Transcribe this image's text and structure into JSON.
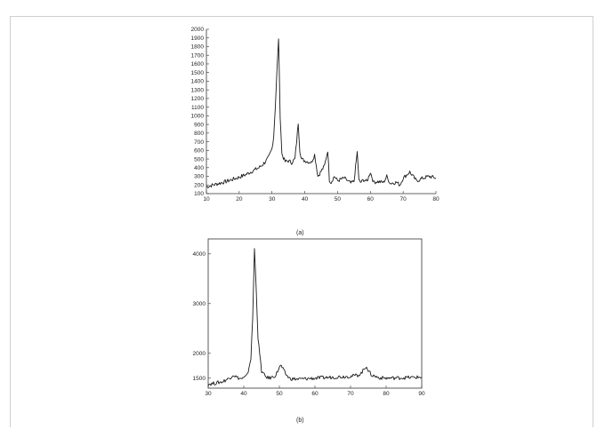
{
  "chart_data": [
    {
      "type": "line",
      "panel": "(a)",
      "title": "",
      "xlabel": "",
      "ylabel": "",
      "xlim": [
        10,
        80
      ],
      "ylim": [
        100,
        2000
      ],
      "x_ticks": [
        10,
        20,
        30,
        40,
        50,
        60,
        70,
        80
      ],
      "y_ticks": [
        100,
        200,
        300,
        400,
        500,
        600,
        700,
        800,
        900,
        1000,
        1100,
        1200,
        1300,
        1400,
        1500,
        1600,
        1700,
        1800,
        1900,
        2000
      ],
      "grid": false,
      "series": [
        {
          "x": [
            10,
            12,
            14,
            16,
            18,
            20,
            22,
            24,
            26,
            27,
            28,
            29,
            30,
            30.5,
            31,
            31.5,
            32,
            32.5,
            33,
            34,
            35,
            36,
            37,
            37.5,
            38,
            38.5,
            39,
            40,
            42,
            43,
            44,
            45,
            46,
            47,
            47.5,
            48,
            49,
            50,
            52,
            54,
            55,
            56,
            56.5,
            57,
            58,
            59,
            60,
            61,
            62,
            64,
            65,
            66,
            68,
            69,
            70,
            72,
            74,
            75,
            76,
            78,
            80
          ],
          "values": [
            180,
            200,
            220,
            240,
            265,
            290,
            320,
            360,
            400,
            430,
            470,
            520,
            620,
            760,
            1100,
            1500,
            1900,
            1000,
            560,
            470,
            480,
            460,
            500,
            700,
            920,
            600,
            500,
            480,
            460,
            550,
            300,
            360,
            420,
            600,
            260,
            230,
            300,
            250,
            280,
            220,
            240,
            580,
            250,
            230,
            260,
            240,
            350,
            230,
            240,
            230,
            300,
            220,
            230,
            200,
            280,
            350,
            250,
            260,
            280,
            300,
            280
          ]
        }
      ]
    },
    {
      "type": "line",
      "panel": "(b)",
      "title": "",
      "xlabel": "",
      "ylabel": "",
      "xlim": [
        30,
        90
      ],
      "ylim": [
        1300,
        4300
      ],
      "x_ticks": [
        30,
        40,
        50,
        60,
        70,
        80,
        90
      ],
      "y_ticks": [
        1500,
        2000,
        3000,
        4000
      ],
      "grid": false,
      "series": [
        {
          "x": [
            30,
            32,
            34,
            36,
            37,
            38,
            39,
            40,
            41,
            42,
            42.5,
            43,
            43.5,
            44,
            45,
            46,
            47,
            48,
            49,
            50,
            50.5,
            51,
            52,
            53,
            55,
            60,
            65,
            70,
            72,
            73,
            74,
            74.5,
            75,
            76,
            78,
            80,
            85,
            90
          ],
          "values": [
            1380,
            1400,
            1430,
            1500,
            1570,
            1520,
            1490,
            1500,
            1560,
            1900,
            2700,
            4100,
            3300,
            2300,
            1640,
            1540,
            1500,
            1520,
            1560,
            1720,
            1750,
            1680,
            1560,
            1490,
            1480,
            1500,
            1520,
            1540,
            1560,
            1600,
            1700,
            1750,
            1640,
            1560,
            1510,
            1500,
            1510,
            1520
          ]
        }
      ]
    }
  ],
  "captions": [
    "(a)",
    "(b)"
  ]
}
